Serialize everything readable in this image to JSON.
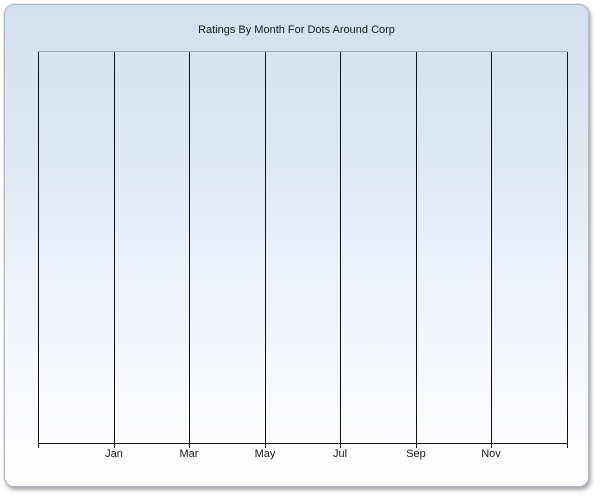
{
  "title": "Ratings By Month For Dots Around Corp",
  "chart_data": {
    "type": "scatter",
    "title": "Ratings By Month For Dots Around Corp",
    "x_tick_labels": [
      "Jan",
      "Mar",
      "May",
      "Jul",
      "Sep",
      "Nov"
    ],
    "x_gridline_count": 8,
    "y_tick_labels": [],
    "series": [],
    "grid": "vertical-only",
    "legend_position": "none",
    "xlabel": "",
    "ylabel": ""
  },
  "colors": {
    "card_top": "#d3deef",
    "card_bottom": "#ffffff",
    "card_border": "#b3b7bf",
    "plot_top_border": "#a7abb3",
    "gridline": "#111111",
    "axis": "#111111",
    "text": "#1a1a1a"
  }
}
